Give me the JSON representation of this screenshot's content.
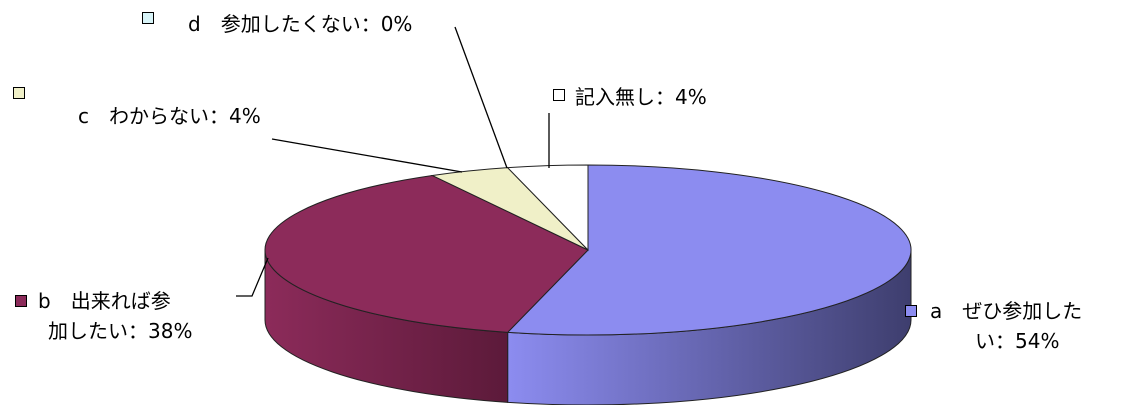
{
  "chart_data": {
    "type": "pie",
    "style": "3d",
    "unit": "%",
    "slices": [
      {
        "key": "a",
        "line1": "a　ぜひ参加した",
        "line2": "い：54%",
        "value": 54,
        "color": "#8c8cf0",
        "side": "#3e3e6e"
      },
      {
        "key": "b",
        "line1": "b　出来れば参",
        "line2": "加したい：38%",
        "value": 38,
        "color": "#8c2b5a",
        "side": "#5c1a3a"
      },
      {
        "key": "c",
        "line1": "c　わからない：4%",
        "line2": "",
        "value": 4,
        "color": "#f0f0c8",
        "side": "#a8a880"
      },
      {
        "key": "d",
        "line1": "d　参加したくない：0%",
        "line2": "",
        "value": 0,
        "color": "#d8f4f8",
        "side": "#98b4b8"
      },
      {
        "key": "none",
        "line1": "記入無し：4%",
        "line2": "",
        "value": 4,
        "color": "#ffffff",
        "side": "#bbbbbb"
      }
    ]
  }
}
